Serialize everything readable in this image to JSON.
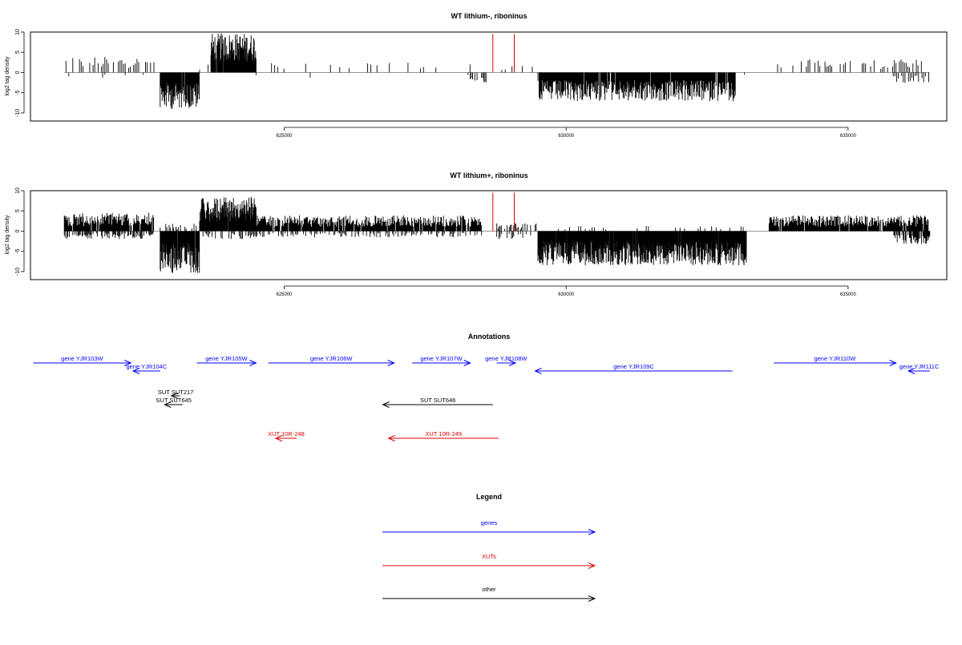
{
  "chart_data": [
    {
      "type": "bar",
      "title": "WT lithium-, riboninus",
      "ylabel": "log2 tag density",
      "ylim": [
        -12,
        10
      ],
      "yticks": [
        10,
        5,
        0,
        -5,
        -10
      ],
      "xlim": [
        620500,
        636750
      ],
      "xticks": [
        625000,
        630000,
        635000
      ],
      "tick_labels": [
        "625000",
        "630000",
        "635000"
      ],
      "grid": false,
      "bar_color": "#000000",
      "marker_color": "#e00000",
      "markers_x": [
        628700,
        629080
      ],
      "regions": [
        {
          "start": 621100,
          "end": 622700,
          "dir": 1,
          "amp": 3.0,
          "step": 30,
          "density": 0.55
        },
        {
          "start": 621100,
          "end": 622700,
          "dir": -1,
          "amp": 1.0,
          "step": 40,
          "density": 0.15
        },
        {
          "start": 622800,
          "end": 623500,
          "dir": -1,
          "amp": 7.0,
          "step": 9,
          "density": 0.97
        },
        {
          "start": 623500,
          "end": 623700,
          "dir": 1,
          "amp": 1.5,
          "step": 30,
          "density": 0.4
        },
        {
          "start": 623700,
          "end": 624500,
          "dir": 1,
          "amp": 7.5,
          "step": 8,
          "density": 0.97
        },
        {
          "start": 624500,
          "end": 628500,
          "dir": 1,
          "amp": 2.0,
          "step": 55,
          "density": 0.25
        },
        {
          "start": 624500,
          "end": 628500,
          "dir": -1,
          "amp": 1.0,
          "step": 80,
          "density": 0.12
        },
        {
          "start": 628300,
          "end": 628700,
          "dir": -1,
          "amp": 2.0,
          "step": 20,
          "density": 0.5
        },
        {
          "start": 628800,
          "end": 629500,
          "dir": 1,
          "amp": 1.5,
          "step": 60,
          "density": 0.3
        },
        {
          "start": 629500,
          "end": 633000,
          "dir": -1,
          "amp": 5.5,
          "step": 10,
          "density": 0.95
        },
        {
          "start": 633000,
          "end": 633500,
          "dir": -1,
          "amp": 0.5,
          "step": 80,
          "density": 0.1
        },
        {
          "start": 633600,
          "end": 636300,
          "dir": 1,
          "amp": 2.5,
          "step": 30,
          "density": 0.5
        },
        {
          "start": 635800,
          "end": 636450,
          "dir": -1,
          "amp": 2.0,
          "step": 30,
          "density": 0.5
        }
      ]
    },
    {
      "type": "bar",
      "title": "WT lithium+, riboninus",
      "ylabel": "log2 tag density",
      "ylim": [
        -12,
        10
      ],
      "yticks": [
        10,
        5,
        0,
        -5,
        -10
      ],
      "xlim": [
        620500,
        636750
      ],
      "xticks": [
        625000,
        630000,
        635000
      ],
      "tick_labels": [
        "625000",
        "630000",
        "635000"
      ],
      "grid": false,
      "bar_color": "#000000",
      "marker_color": "#e00000",
      "markers_x": [
        628700,
        629080
      ],
      "regions": [
        {
          "start": 621100,
          "end": 622700,
          "dir": 1,
          "amp": 3.5,
          "step": 12,
          "density": 0.95
        },
        {
          "start": 621100,
          "end": 622700,
          "dir": -1,
          "amp": 1.5,
          "step": 15,
          "density": 0.7
        },
        {
          "start": 622800,
          "end": 623500,
          "dir": -1,
          "amp": 8.0,
          "step": 8,
          "density": 0.98
        },
        {
          "start": 622800,
          "end": 623500,
          "dir": 1,
          "amp": 1.5,
          "step": 20,
          "density": 0.5
        },
        {
          "start": 623500,
          "end": 624500,
          "dir": 1,
          "amp": 6.5,
          "step": 8,
          "density": 0.98
        },
        {
          "start": 623500,
          "end": 624500,
          "dir": -1,
          "amp": 1.5,
          "step": 20,
          "density": 0.5
        },
        {
          "start": 624500,
          "end": 628500,
          "dir": 1,
          "amp": 3.0,
          "step": 12,
          "density": 0.9
        },
        {
          "start": 624500,
          "end": 628500,
          "dir": -1,
          "amp": 1.2,
          "step": 20,
          "density": 0.5
        },
        {
          "start": 628750,
          "end": 629500,
          "dir": 1,
          "amp": 1.5,
          "step": 20,
          "density": 0.6
        },
        {
          "start": 628750,
          "end": 629500,
          "dir": -1,
          "amp": 1.5,
          "step": 20,
          "density": 0.5
        },
        {
          "start": 629500,
          "end": 633200,
          "dir": -1,
          "amp": 6.5,
          "step": 7,
          "density": 0.98
        },
        {
          "start": 629500,
          "end": 633200,
          "dir": 1,
          "amp": 1.0,
          "step": 40,
          "density": 0.3
        },
        {
          "start": 633600,
          "end": 636450,
          "dir": 1,
          "amp": 3.0,
          "step": 12,
          "density": 0.95
        },
        {
          "start": 635800,
          "end": 636450,
          "dir": -1,
          "amp": 2.5,
          "step": 12,
          "density": 0.8
        }
      ]
    }
  ],
  "annotations": {
    "title": "Annotations",
    "genes": [
      {
        "label": "gene YJR103W",
        "start": 620550,
        "end": 622280,
        "row": 0,
        "dir": 1
      },
      {
        "label": "gene YJR104C",
        "start": 622320,
        "end": 622800,
        "row": 1,
        "dir": -1
      },
      {
        "label": "gene YJR105W",
        "start": 623450,
        "end": 624500,
        "row": 0,
        "dir": 1
      },
      {
        "label": "gene YJR106W",
        "start": 624720,
        "end": 626950,
        "row": 0,
        "dir": 1
      },
      {
        "label": "gene YJR107W",
        "start": 627270,
        "end": 628300,
        "row": 0,
        "dir": 1
      },
      {
        "label": "gene YJR108W",
        "start": 628770,
        "end": 629100,
        "row": 0,
        "dir": 1
      },
      {
        "label": "gene YJR109C",
        "start": 629450,
        "end": 632950,
        "row": 1,
        "dir": -1
      },
      {
        "label": "gene YJR110W",
        "start": 633680,
        "end": 635850,
        "row": 0,
        "dir": 1
      },
      {
        "label": "gene YJR111C",
        "start": 636070,
        "end": 636920,
        "row": 1,
        "dir": -1
      }
    ],
    "other": [
      {
        "label": "SUT SUT217",
        "start": 623000,
        "end": 623150,
        "dir": -1
      },
      {
        "label": "SUT SUT645",
        "start": 622880,
        "end": 623200,
        "dir": -1
      },
      {
        "label": "SUT SUT646",
        "start": 626750,
        "end": 628700,
        "dir": -1
      }
    ],
    "xuts": [
      {
        "label": "XUT 10R-248",
        "start": 624850,
        "end": 625220,
        "dir": -1
      },
      {
        "label": "XUT 10R-249",
        "start": 626850,
        "end": 628800,
        "dir": -1
      }
    ]
  },
  "legend": {
    "title": "Legend",
    "items": [
      {
        "label": "genes",
        "color": "#0000ff"
      },
      {
        "label": "XUTs",
        "color": "#e00000"
      },
      {
        "label": "other",
        "color": "#000000"
      }
    ]
  },
  "colors": {
    "gene": "#0000ff",
    "xut": "#e00000",
    "other": "#000000"
  }
}
